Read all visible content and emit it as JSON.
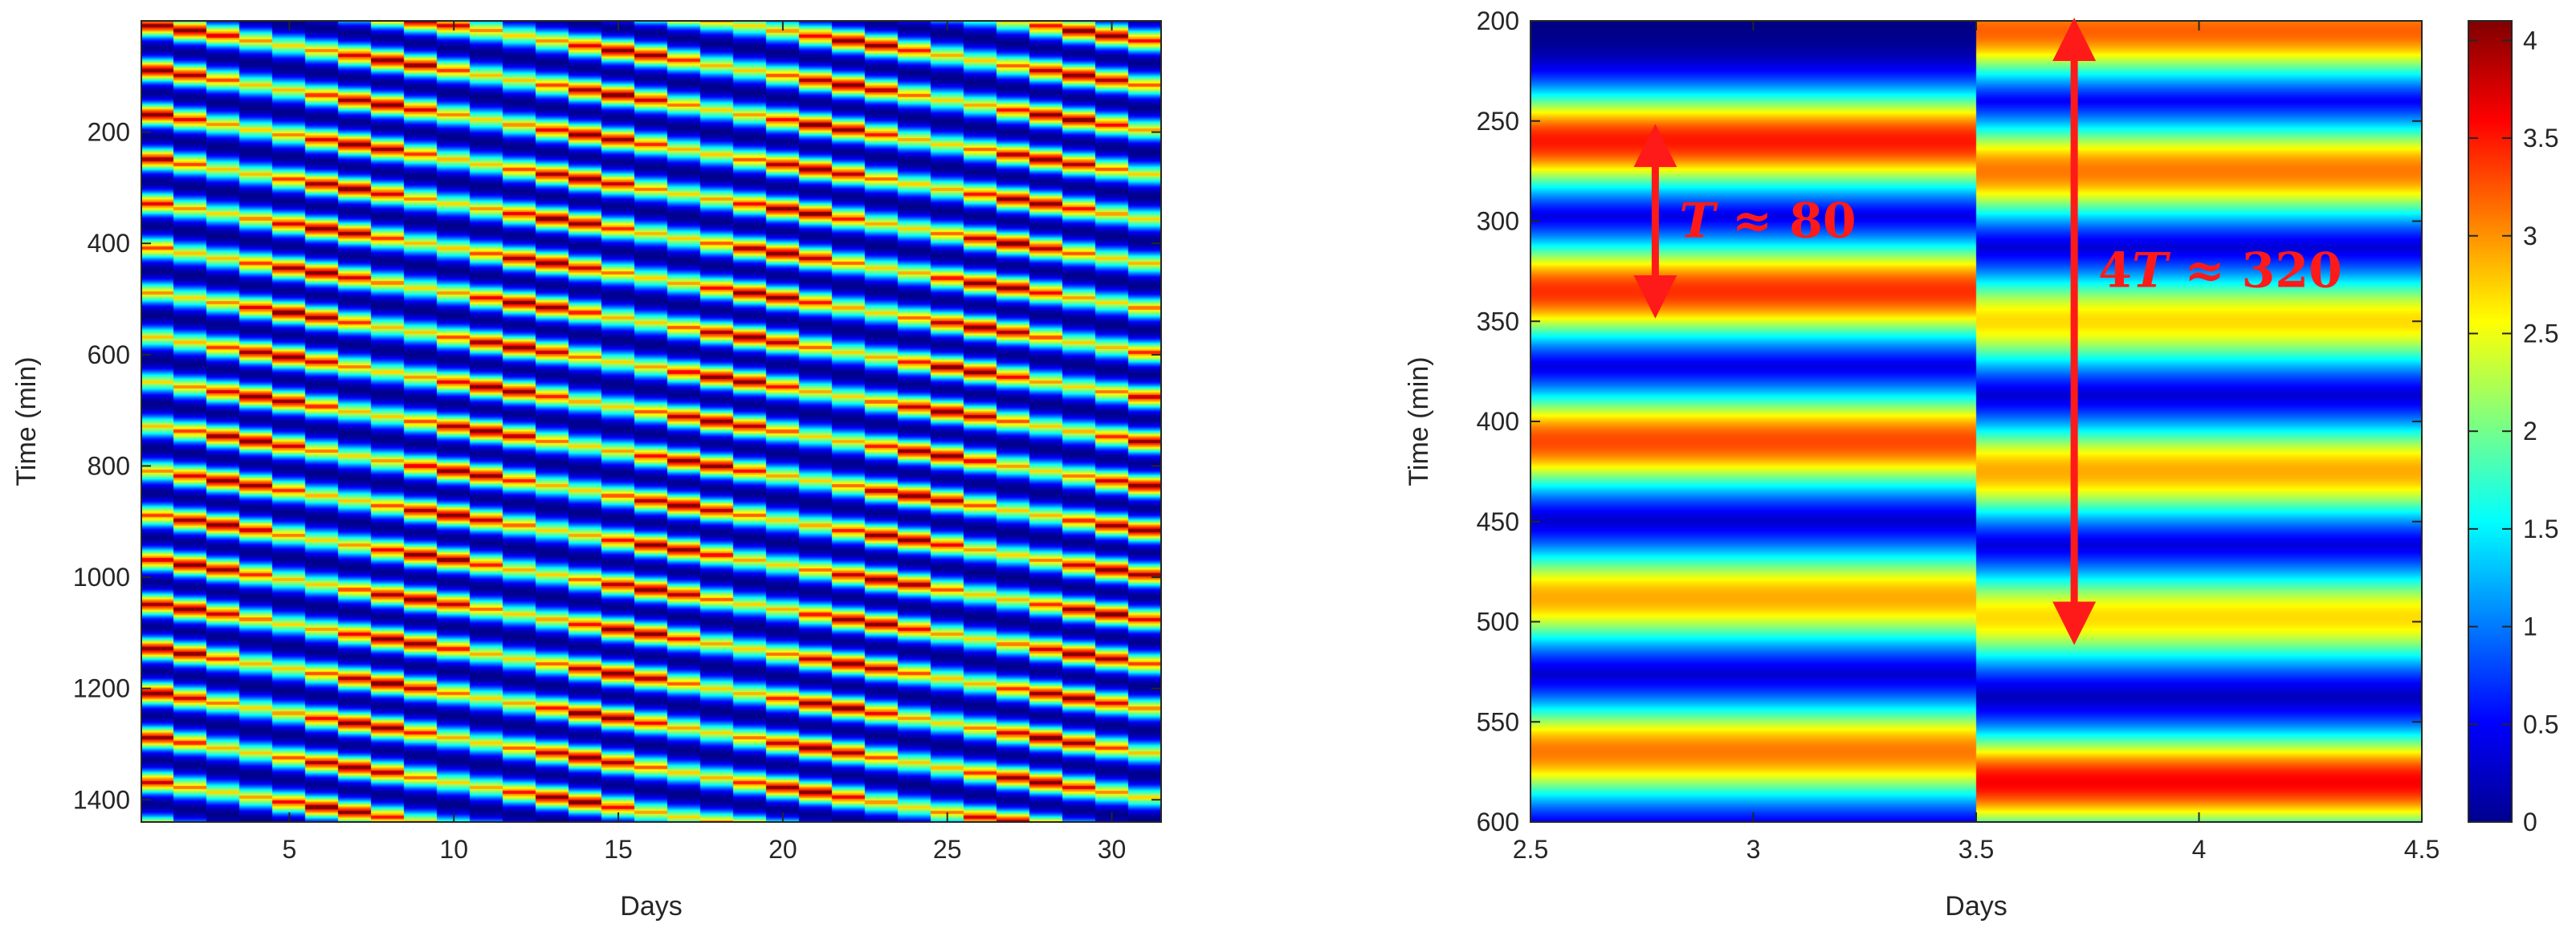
{
  "chart_data": [
    {
      "type": "heatmap",
      "xlabel": "Days",
      "ylabel": "Time (min)",
      "xlim": [
        0.5,
        31.5
      ],
      "ylim": [
        0,
        1440
      ],
      "y_reversed": true,
      "x_ticks": [
        "5",
        "10",
        "15",
        "20",
        "25",
        "30"
      ],
      "y_ticks": [
        "200",
        "400",
        "600",
        "800",
        "1000",
        "1200",
        "1400"
      ],
      "pattern": {
        "period_min": 80,
        "phase_shift_per_day_min": 8.9,
        "peak_value": 4
      },
      "colormap": "jet"
    },
    {
      "type": "heatmap",
      "xlabel": "Days",
      "ylabel": "Time (min)",
      "xlim": [
        2.5,
        4.5
      ],
      "ylim": [
        200,
        600
      ],
      "y_reversed": true,
      "x_ticks": [
        "2.5",
        "3",
        "3.5",
        "4",
        "4.5"
      ],
      "y_ticks": [
        "200",
        "250",
        "300",
        "350",
        "400",
        "450",
        "500",
        "550",
        "600"
      ],
      "colormap": "jet",
      "colorbar": {
        "min": 0,
        "max": 4.1,
        "ticks": [
          "0",
          "0.5",
          "1",
          "1.5",
          "2",
          "2.5",
          "3",
          "3.5",
          "4"
        ]
      },
      "bands_day3": [
        {
          "center": 260,
          "peak": 3.5
        },
        {
          "center": 335,
          "peak": 3.4
        },
        {
          "center": 410,
          "peak": 3.3
        },
        {
          "center": 488,
          "peak": 2.9
        },
        {
          "center": 565,
          "peak": 3.1
        }
      ],
      "bands_day4": [
        {
          "center": 205,
          "peak": 3.2
        },
        {
          "center": 275,
          "peak": 3.1
        },
        {
          "center": 350,
          "peak": 2.7
        },
        {
          "center": 425,
          "peak": 2.9
        },
        {
          "center": 498,
          "peak": 2.7
        },
        {
          "center": 580,
          "peak": 3.6
        }
      ],
      "band_sigma_min": 18,
      "annotations": [
        {
          "prefix": "",
          "var": "T",
          "suffix": " ≈ 80",
          "from": 255,
          "to": 345,
          "x": 2.78
        },
        {
          "prefix": "4",
          "var": "T",
          "suffix": " ≈ 320",
          "from": 202,
          "to": 508,
          "x": 3.72
        }
      ]
    }
  ]
}
